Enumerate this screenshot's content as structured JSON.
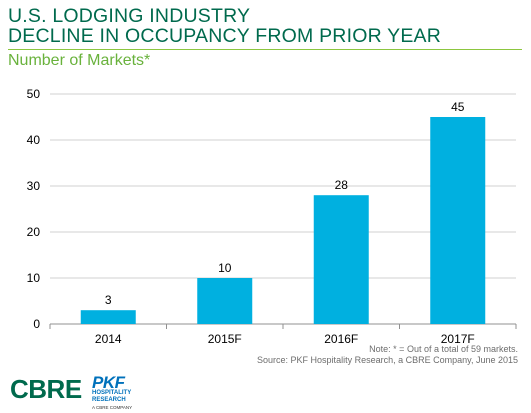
{
  "header": {
    "title_line1": "U.S. LODGING INDUSTRY",
    "title_line2": "DECLINE IN OCCUPANCY FROM PRIOR YEAR",
    "subtitle": "Number of Markets*"
  },
  "chart_data": {
    "type": "bar",
    "categories": [
      "2014",
      "2015F",
      "2016F",
      "2017F"
    ],
    "values": [
      3,
      10,
      28,
      45
    ],
    "ylim": [
      0,
      50
    ],
    "yticks": [
      0,
      10,
      20,
      30,
      40,
      50
    ],
    "grid": true,
    "bar_color": "#00B0E0"
  },
  "footer": {
    "note": "Note: * = Out of a total of 59 markets.",
    "source": "Source: PKF Hospitality Research, a CBRE Company, June 2015"
  },
  "logos": {
    "cbre": "CBRE",
    "pkf": "PKF",
    "pkf_line1": "HOSPITALITY",
    "pkf_line2": "RESEARCH",
    "pkf_tagline": "A CBRE COMPANY"
  },
  "colors": {
    "title": "#006A4D",
    "subtitle": "#69B23C",
    "bars": "#00B0E0",
    "pkf_blue": "#0071BB"
  }
}
